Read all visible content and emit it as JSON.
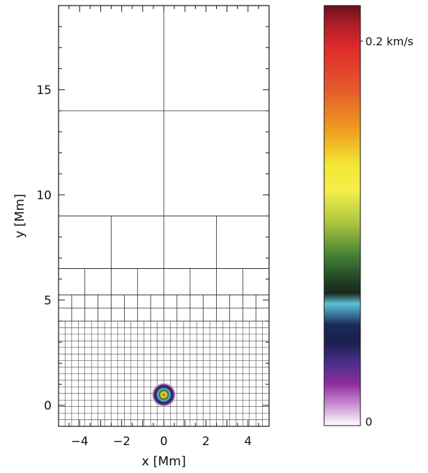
{
  "x_axis": {
    "title": "x [Mm]",
    "ticks": [
      {
        "value": -4,
        "label": "−4"
      },
      {
        "value": -2,
        "label": "−2"
      },
      {
        "value": 0,
        "label": "0"
      },
      {
        "value": 2,
        "label": "2"
      },
      {
        "value": 4,
        "label": "4"
      }
    ],
    "range": [
      -5,
      5
    ]
  },
  "y_axis": {
    "title": "y [Mm]",
    "ticks": [
      {
        "value": 0,
        "label": "0"
      },
      {
        "value": 5,
        "label": "5"
      },
      {
        "value": 10,
        "label": "10"
      },
      {
        "value": 15,
        "label": "15"
      }
    ],
    "range": [
      -1,
      19
    ]
  },
  "mesh": {
    "levels": [
      {
        "name": "level-1",
        "y_from": 9,
        "y_to": 19,
        "dx": 5,
        "dy": 5
      },
      {
        "name": "level-2",
        "y_from": 6.5,
        "y_to": 9,
        "dx": 2.5,
        "dy": 2.5
      },
      {
        "name": "level-3",
        "y_from": 5.25,
        "y_to": 6.5,
        "dx": 1.25,
        "dy": 1.25
      },
      {
        "name": "level-4",
        "y_from": 4.0,
        "y_to": 5.25,
        "dx": 0.625,
        "dy": 0.625
      },
      {
        "name": "level-5",
        "y_from": -1,
        "y_to": 4.0,
        "dx": 0.3125,
        "dy": 0.3125
      }
    ]
  },
  "blob": {
    "x": 0,
    "y": 0.5,
    "radius": 0.6
  },
  "colorbar": {
    "max_label": "0.2 km/s",
    "min_label": "0",
    "max_label_value": 0.2,
    "stops": [
      "#6b0f1a",
      "#a71e25",
      "#e02a2d",
      "#e55a2a",
      "#f0a01f",
      "#f2e734",
      "#f5ef4a",
      "#a9c33f",
      "#3e7d33",
      "#1e3a23",
      "#1a2b1e",
      "#5bc2d8",
      "#1c2a5c",
      "#1a1f4f",
      "#4a2f8a",
      "#8f2d9c",
      "#c88fd0",
      "#ffffff"
    ],
    "stop_positions": [
      0,
      0.04,
      0.1,
      0.2,
      0.3,
      0.38,
      0.44,
      0.52,
      0.6,
      0.66,
      0.685,
      0.71,
      0.76,
      0.8,
      0.85,
      0.9,
      0.95,
      1
    ]
  }
}
